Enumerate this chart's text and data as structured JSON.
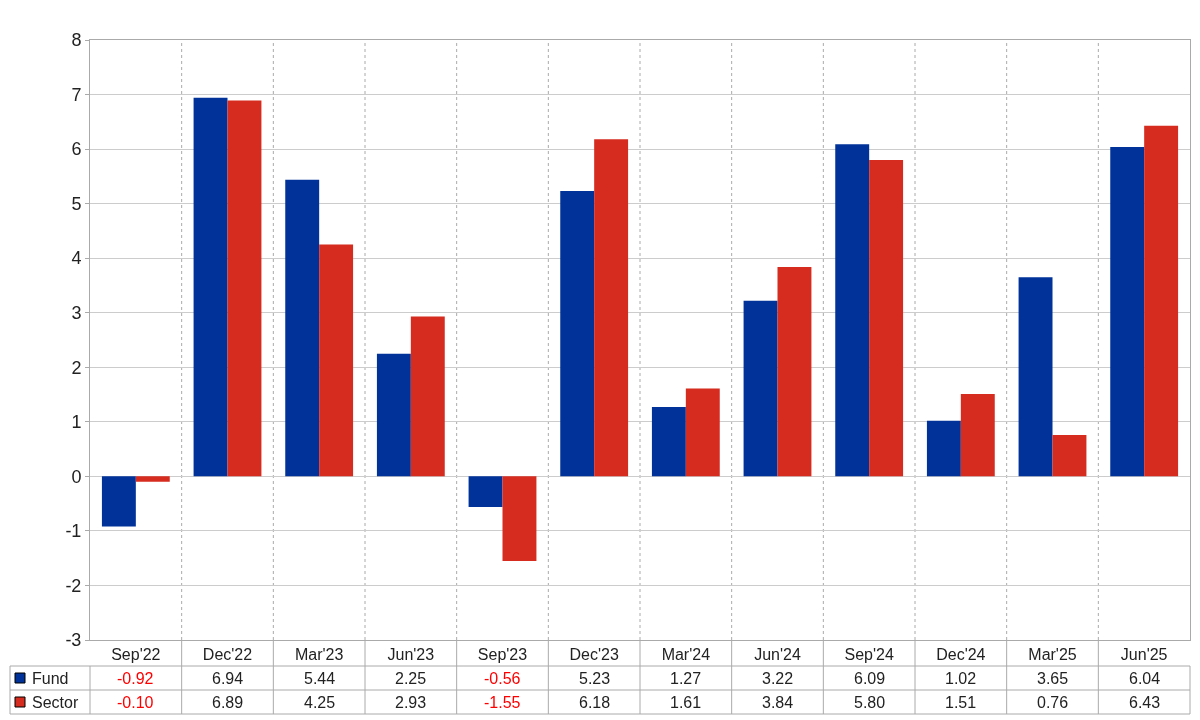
{
  "chart_data": {
    "type": "bar",
    "categories": [
      "Sep'22",
      "Dec'22",
      "Mar'23",
      "Jun'23",
      "Sep'23",
      "Dec'23",
      "Mar'24",
      "Jun'24",
      "Sep'24",
      "Dec'24",
      "Mar'25",
      "Jun'25"
    ],
    "series": [
      {
        "name": "Fund",
        "color": "#003299",
        "values": [
          -0.92,
          6.94,
          5.44,
          2.25,
          -0.56,
          5.23,
          1.27,
          3.22,
          6.09,
          1.02,
          3.65,
          6.04
        ],
        "value_labels": [
          "-0.92",
          "6.94",
          "5.44",
          "2.25",
          "-0.56",
          "5.23",
          "1.27",
          "3.22",
          "6.09",
          "1.02",
          "3.65",
          "6.04"
        ]
      },
      {
        "name": "Sector",
        "color": "#d62b1f",
        "values": [
          -0.1,
          6.89,
          4.25,
          2.93,
          -1.55,
          6.18,
          1.61,
          3.84,
          5.8,
          1.51,
          0.76,
          6.43
        ],
        "value_labels": [
          "-0.10",
          "6.89",
          "4.25",
          "2.93",
          "-1.55",
          "6.18",
          "1.61",
          "3.84",
          "5.80",
          "1.51",
          "0.76",
          "6.43"
        ]
      }
    ],
    "ylim": [
      -3,
      8
    ],
    "yticks": [
      -3,
      -2,
      -1,
      0,
      1,
      2,
      3,
      4,
      5,
      6,
      7,
      8
    ],
    "grid": true,
    "legend": "bottom left"
  }
}
